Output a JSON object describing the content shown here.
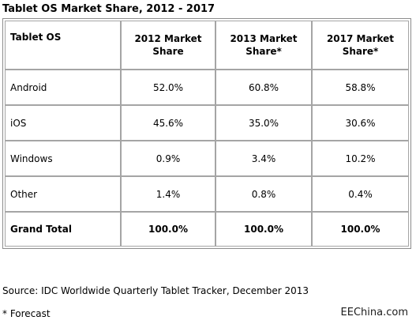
{
  "title": "Tablet OS Market Share, 2012 - 2017",
  "chart_data": {
    "type": "table",
    "title": "Tablet OS Market Share, 2012 - 2017",
    "columns": [
      "Tablet OS",
      "2012 Market Share",
      "2013 Market Share*",
      "2017 Market Share*"
    ],
    "rows": [
      [
        "Android",
        "52.0%",
        "60.8%",
        "58.8%"
      ],
      [
        "iOS",
        "45.6%",
        "35.0%",
        "30.6%"
      ],
      [
        "Windows",
        "0.9%",
        "3.4%",
        "10.2%"
      ],
      [
        "Other",
        "1.4%",
        "0.8%",
        "0.4%"
      ]
    ],
    "total_row": [
      "Grand Total",
      "100.0%",
      "100.0%",
      "100.0%"
    ]
  },
  "source": "Source: IDC Worldwide Quarterly Tablet Tracker, December 2013",
  "footnote": "* Forecast",
  "watermark": "EEChina.com"
}
